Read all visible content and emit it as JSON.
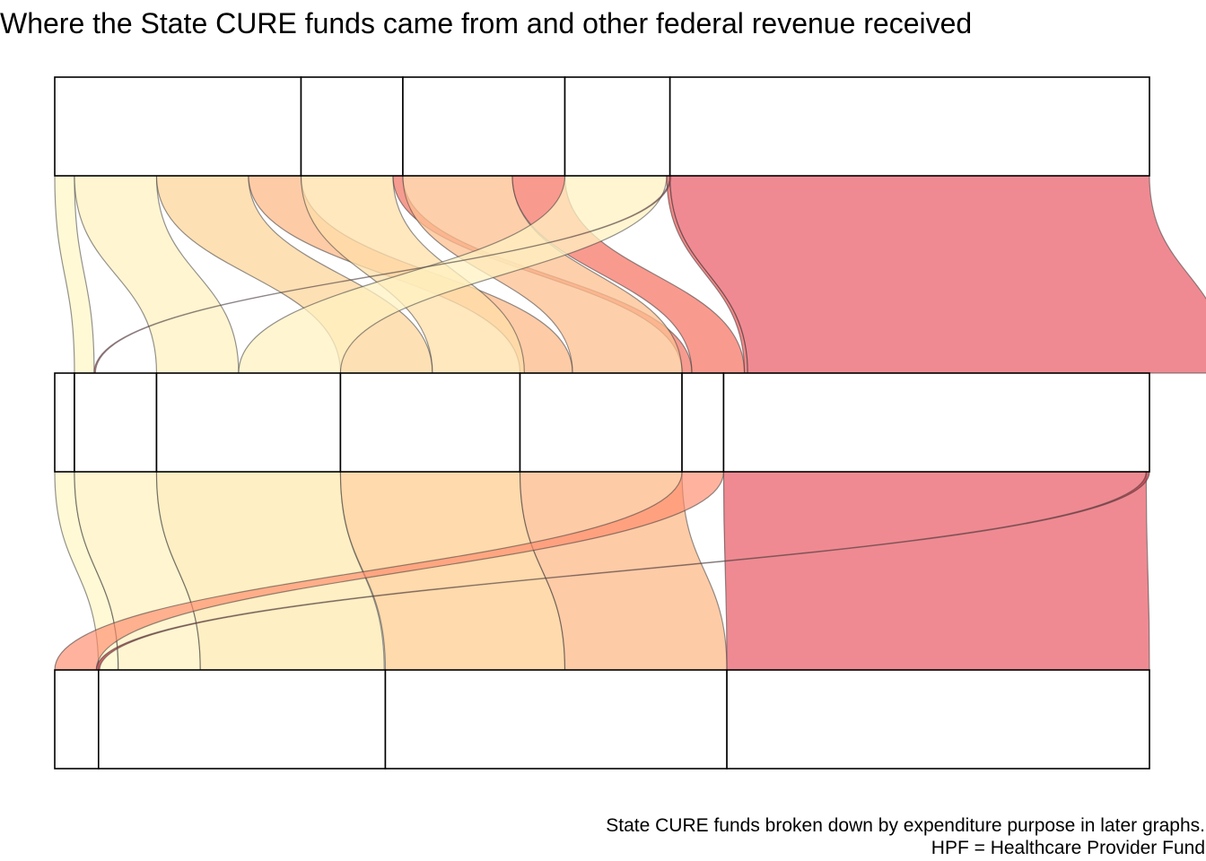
{
  "title": "Where the State CURE funds came from and other federal revenue received",
  "caption": {
    "line1": "State CURE funds broken down by expenditure purpose in later graphs.",
    "line2": "HPF = Healthcare Provider Fund"
  },
  "chart_data": {
    "type": "alluvial",
    "title": "Where the State CURE funds came from and other federal revenue received",
    "axes": [
      {
        "strata": [
          {
            "value": 225,
            "color": "#FFF7C4"
          },
          {
            "value": 93,
            "color": "#FCE1A3"
          },
          {
            "value": 148,
            "color": "#FDC58F"
          },
          {
            "value": 96,
            "color": "#F49A6F"
          },
          {
            "value": 438,
            "color": "#E9636E"
          }
        ]
      },
      {
        "strata": [
          {
            "value": 18,
            "color": "#FFFFDE"
          },
          {
            "value": 75,
            "color": "#FFF2C4"
          },
          {
            "value": 168,
            "color": "#FEE3A6"
          },
          {
            "value": 164,
            "color": "#FDCA8B"
          },
          {
            "value": 148,
            "color": "#F9A585"
          },
          {
            "value": 38,
            "color": "#F37A6A"
          },
          {
            "value": 389,
            "color": "#E9636E"
          }
        ]
      },
      {
        "strata": [
          {
            "value": 40,
            "color": "#FFA08A"
          },
          {
            "value": 262,
            "color": "#FEEBB0"
          },
          {
            "value": 312,
            "color": "#FDBF8A"
          },
          {
            "value": 386,
            "color": "#E9636E"
          }
        ]
      }
    ],
    "flows": [
      {
        "a": 0,
        "b": 1,
        "v": 18,
        "c": "#FFF7C8",
        "o": 0.75
      },
      {
        "a": 0,
        "b": 2,
        "v": 75,
        "c": "#FFF1C2",
        "o": 0.75
      },
      {
        "a": 0,
        "b": 3,
        "v": 84,
        "c": "#FDD59C",
        "o": 0.75
      },
      {
        "a": 0,
        "b": 4,
        "v": 48,
        "c": "#FDB98A",
        "o": 0.75
      },
      {
        "a": 1,
        "b": 3,
        "v": 84,
        "c": "#FFDFA8",
        "o": 0.75
      },
      {
        "a": 1,
        "b": 5,
        "v": 9,
        "c": "#F37A6A",
        "o": 0.75
      },
      {
        "a": 2,
        "b": 4,
        "v": 100,
        "c": "#FDBF8F",
        "o": 0.75
      },
      {
        "a": 2,
        "b": 5,
        "v": 48,
        "c": "#F76F5F",
        "o": 0.7
      },
      {
        "a": 3,
        "b": 2,
        "v": 93,
        "c": "#FFF1C2",
        "o": 0.75
      },
      {
        "a": 3,
        "b": 5,
        "v": 3,
        "c": "#EE5555",
        "o": 0.7
      },
      {
        "a": 4,
        "b": 1,
        "v": 0,
        "c": "#E9636E",
        "o": 0.7
      },
      {
        "a": 4,
        "b": 5,
        "v": 438,
        "c": "#E9636E",
        "o": 0.75
      }
    ],
    "flows2": [
      {
        "a": 0,
        "b": 1,
        "v": 18,
        "c": "#FFF7C8",
        "o": 0.75
      },
      {
        "a": 1,
        "b": 1,
        "v": 75,
        "c": "#FFF1C2",
        "o": 0.75
      },
      {
        "a": 2,
        "b": 1,
        "v": 168,
        "c": "#FEEAB0",
        "o": 0.75
      },
      {
        "a": 3,
        "b": 2,
        "v": 164,
        "c": "#FDCE90",
        "o": 0.75
      },
      {
        "a": 4,
        "b": 2,
        "v": 148,
        "c": "#FDB98A",
        "o": 0.75
      },
      {
        "a": 5,
        "b": 0,
        "v": 38,
        "c": "#FF8A6A",
        "o": 0.65
      },
      {
        "a": 6,
        "b": 3,
        "v": 386,
        "c": "#E9636E",
        "o": 0.75
      },
      {
        "a": 6,
        "b": 0,
        "v": 3,
        "c": "#C0404A",
        "o": 0.8
      }
    ]
  }
}
